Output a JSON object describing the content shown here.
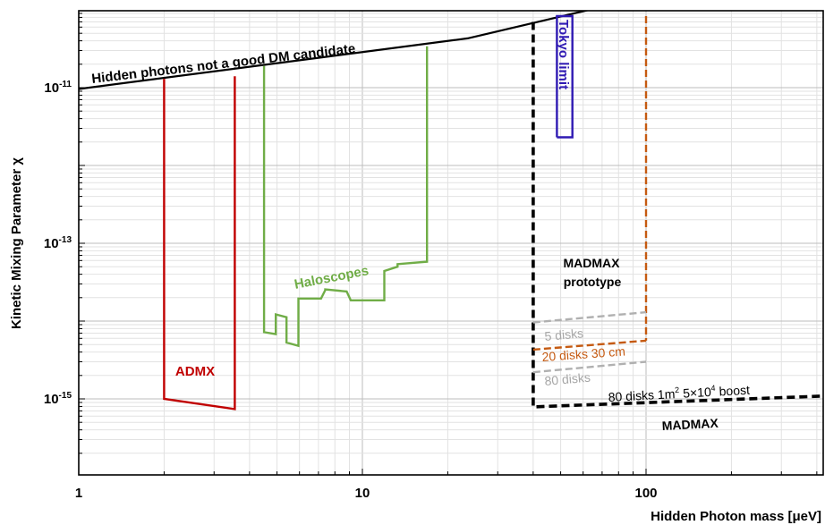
{
  "chart_data": {
    "type": "line",
    "title": "",
    "xlabel": "Hidden Photon mass [μeV]",
    "ylabel": "Kinetic Mixing Parameter χ",
    "xscale": "log",
    "yscale": "log",
    "xlim": [
      1,
      650
    ],
    "ylim": [
      3e-17,
      1e-10
    ],
    "grid": true,
    "legend": "none",
    "x_ticks": [
      {
        "value": 1,
        "label": "1"
      },
      {
        "value": 10,
        "label": "10"
      },
      {
        "value": 100,
        "label": "100"
      }
    ],
    "y_ticks": [
      {
        "exp": -11,
        "label_base": "10",
        "label_exp": "-11"
      },
      {
        "exp": -13,
        "label_base": "10",
        "label_exp": "-13"
      },
      {
        "exp": -15,
        "label_base": "10",
        "label_exp": "-15"
      }
    ],
    "series": [
      {
        "name": "Hidden photons not a good DM candidate",
        "color": "#000000",
        "dash": "solid",
        "x": [
          1,
          23.5,
          63
        ],
        "y": [
          9.6e-12,
          4.3e-11,
          1e-10
        ]
      },
      {
        "name": "ADMX",
        "color": "#c00000",
        "dash": "solid",
        "x": [
          2.0,
          2.0,
          3.55,
          3.55
        ],
        "y": [
          1.3e-11,
          1e-15,
          7.4e-16,
          1.4e-11
        ]
      },
      {
        "name": "Haloscopes",
        "color": "#70ad47",
        "dash": "solid",
        "x": [
          4.5,
          4.5,
          4.95,
          4.95,
          5.4,
          5.4,
          5.95,
          5.95,
          6.15,
          6.15,
          7.15,
          7.15,
          7.4,
          7.4,
          8.8,
          8.8,
          9.1,
          9.1,
          11.95,
          11.95,
          13.3,
          13.3,
          16.9,
          16.9
        ],
        "y": [
          1.9e-11,
          7.2e-15,
          6.8e-15,
          1.22e-14,
          1.12e-14,
          5.3e-15,
          4.8e-15,
          1.95e-14,
          1.95e-14,
          1.95e-14,
          1.95e-14,
          1.95e-14,
          2.5e-14,
          2.55e-14,
          2.4e-14,
          2.4e-14,
          1.85e-14,
          1.85e-14,
          1.85e-14,
          4.4e-14,
          5e-14,
          5.4e-14,
          5.8e-14,
          3.4e-11
        ]
      },
      {
        "name": "Tokyo limit",
        "color": "#2f1ab3",
        "dash": "solid",
        "x": [
          48.5,
          48.5,
          55,
          55,
          48.5
        ],
        "y": [
          2.3e-12,
          8.3e-11,
          8.3e-11,
          2.3e-12,
          2.3e-12
        ]
      },
      {
        "name": "MADMAX",
        "color": "#000000",
        "dash": "dashed",
        "x": [
          40,
          40,
          640,
          640
        ],
        "y": [
          7e-11,
          7.9e-16,
          1.15e-15,
          7.8e-11
        ]
      },
      {
        "name": "MADMAX prototype",
        "color": "#c55a11",
        "dash": "dashed",
        "x": [
          100,
          100
        ],
        "y": [
          8.3e-11,
          5.6e-15
        ]
      },
      {
        "name": "5 disks",
        "color": "#b0b0b0",
        "dash": "dashed",
        "x": [
          40,
          100
        ],
        "y": [
          9.6e-15,
          1.3e-14
        ]
      },
      {
        "name": "20 disks 30 cm",
        "color": "#c55a11",
        "dash": "dashed",
        "x": [
          40,
          100
        ],
        "y": [
          4.3e-15,
          5.6e-15
        ]
      },
      {
        "name": "80 disks",
        "color": "#b0b0b0",
        "dash": "dashed",
        "x": [
          40,
          100
        ],
        "y": [
          2.2e-15,
          3e-15
        ]
      }
    ],
    "annotations": {
      "dm_line": "Hidden photons not a good DM candidate",
      "admx": "ADMX",
      "haloscopes": "Haloscopes",
      "tokyo": "Tokyo limit",
      "proto_line1": "MADMAX",
      "proto_line2": "prototype",
      "five_disks": "5 disks",
      "twenty_disks": "20 disks 30 cm",
      "eighty_disks": "80 disks",
      "full_a": "80 disks 1m",
      "full_sup1": "2",
      "full_b": " 5×10",
      "full_sup2": "4",
      "full_c": " boost",
      "madmax": "MADMAX"
    },
    "colors": {
      "admx": "#c00000",
      "haloscopes": "#70ad47",
      "tokyo": "#2f1ab3",
      "orange": "#c55a11",
      "gray": "#b0b0b0",
      "black": "#000000"
    }
  }
}
